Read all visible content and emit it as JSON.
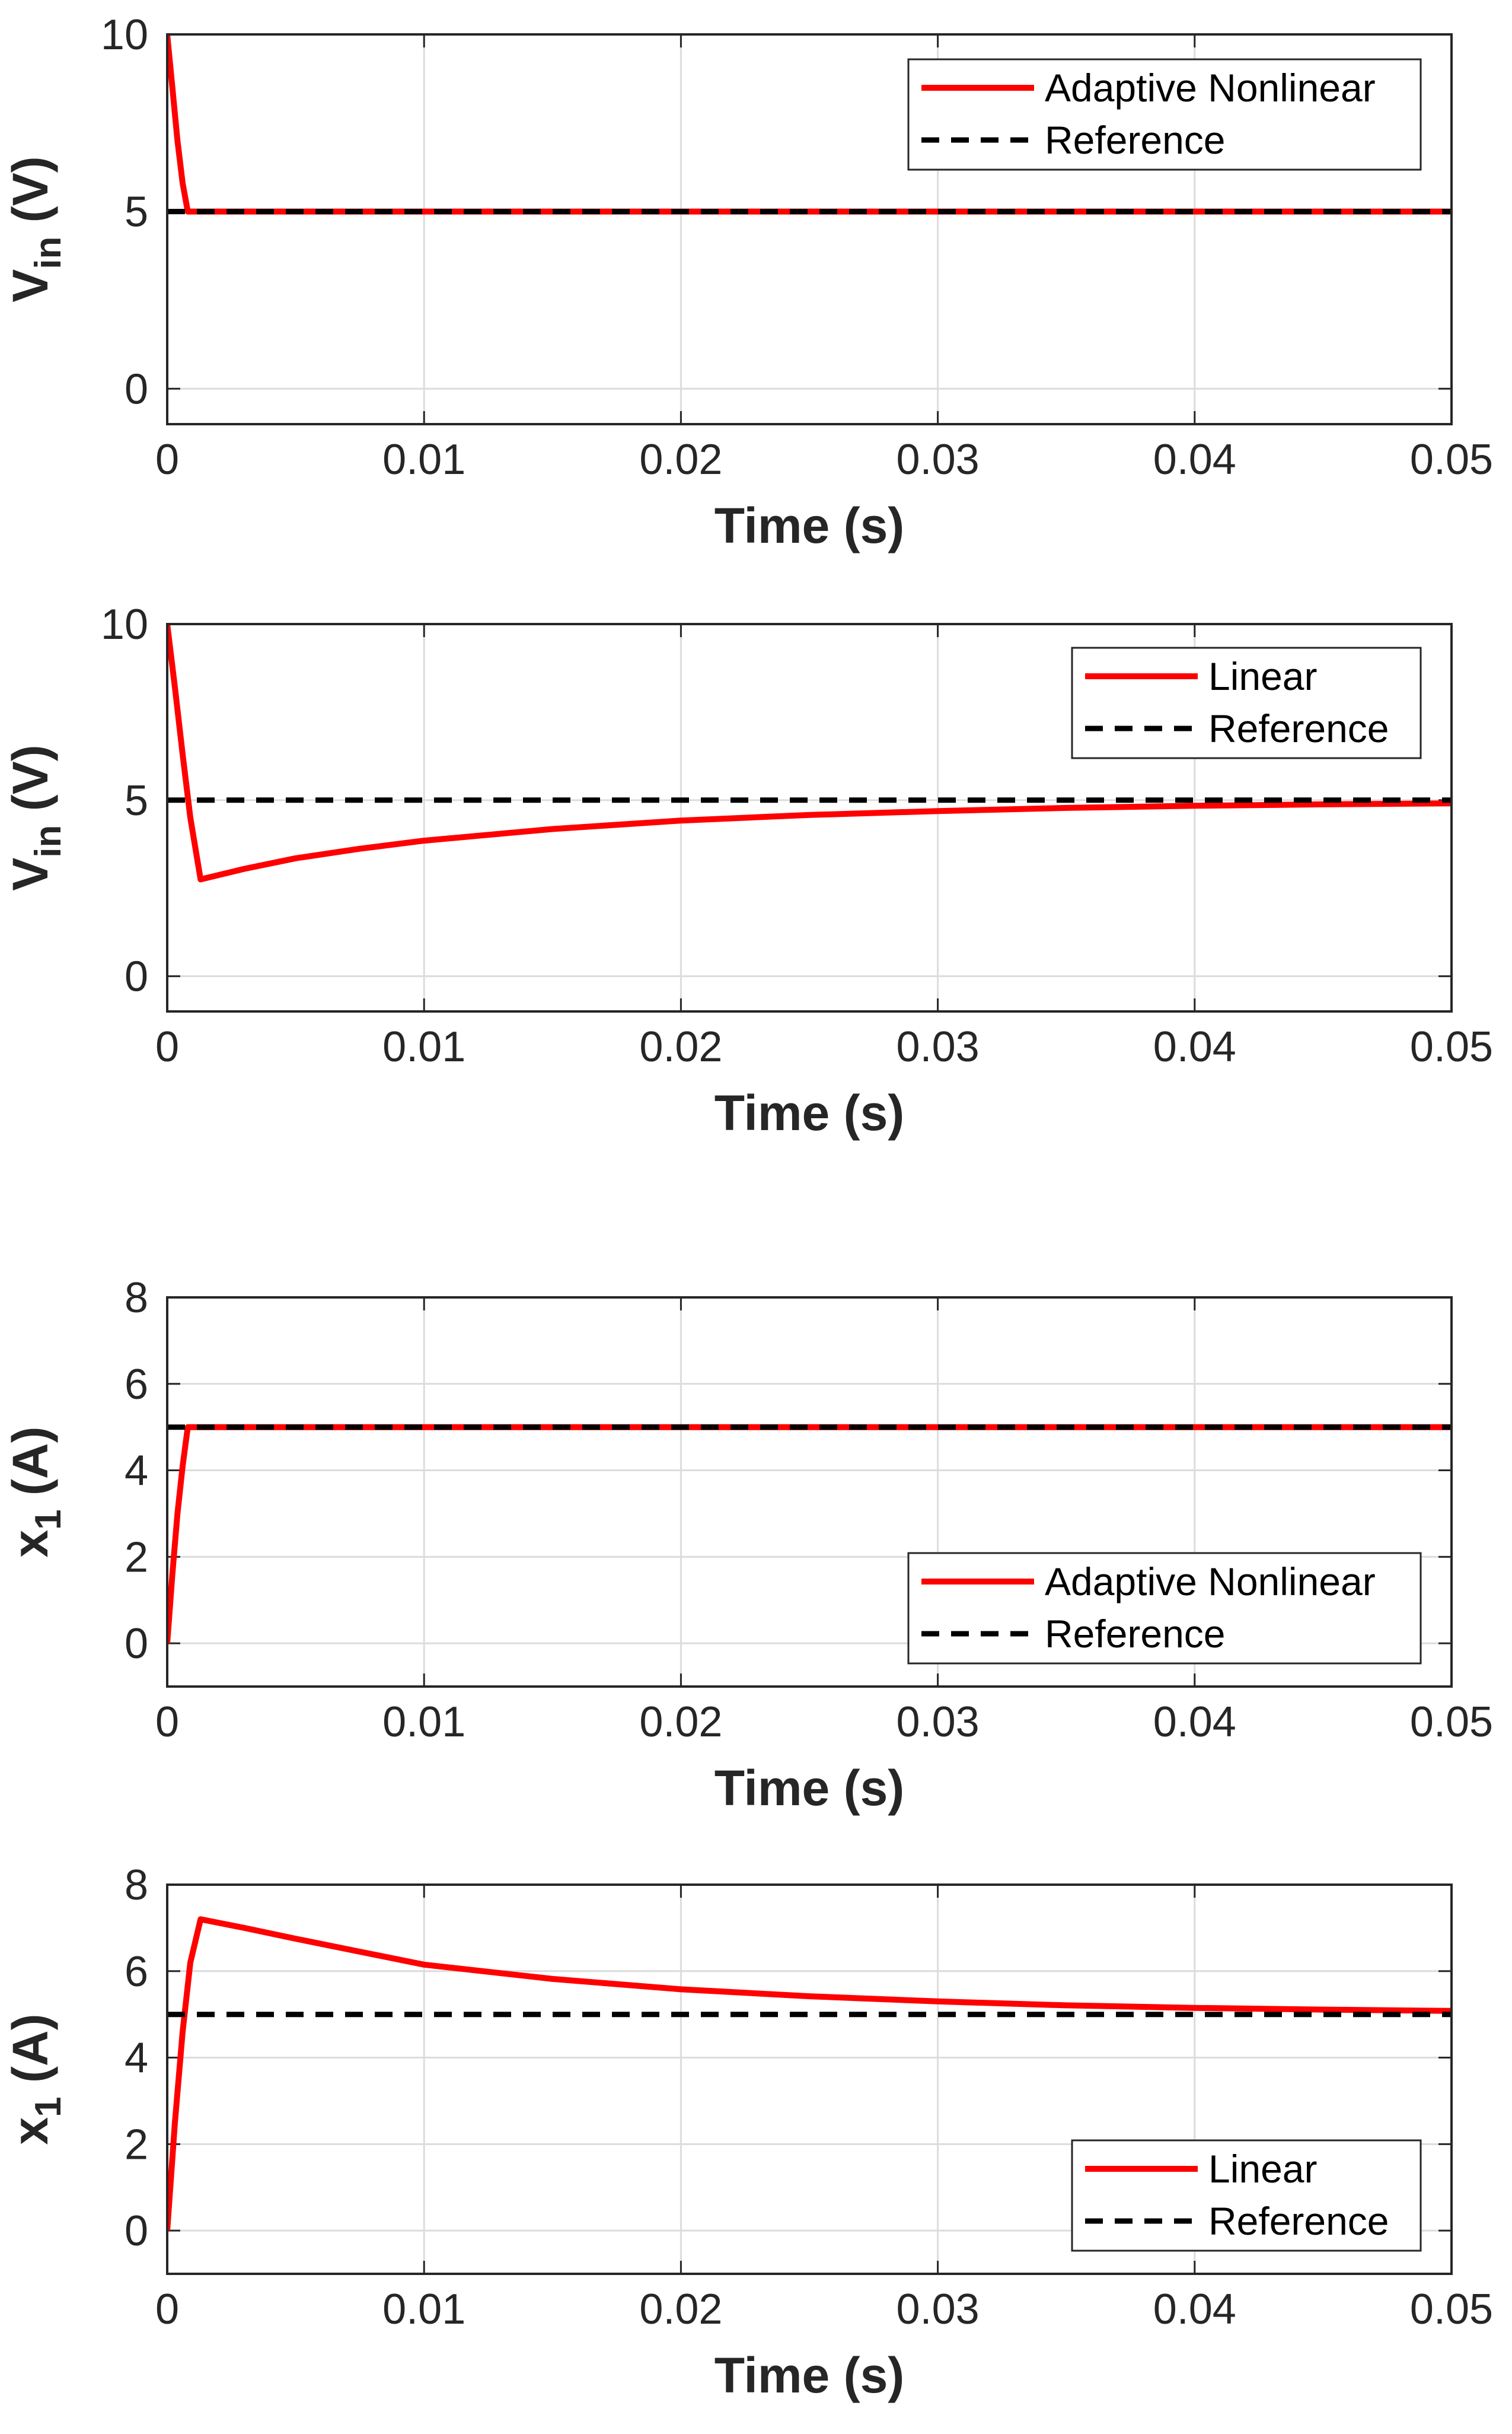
{
  "colors": {
    "series_line": "#ff0000",
    "reference_line": "#000000",
    "grid": "#dcdcdc",
    "axis": "#262626"
  },
  "chart_data": [
    {
      "type": "line",
      "xlabel": "Time (s)",
      "ylabel": "V",
      "ylabel_sub": "in",
      "ylabel_unit": " (V)",
      "xlim": [
        0,
        0.05
      ],
      "ylim": [
        -1,
        10
      ],
      "xticks": [
        0,
        0.01,
        0.02,
        0.03,
        0.04,
        0.05
      ],
      "xtick_labels": [
        "0",
        "0.01",
        "0.02",
        "0.03",
        "0.04",
        "0.05"
      ],
      "yticks": [
        0,
        5,
        10
      ],
      "ytick_labels": [
        "0",
        "5",
        "10"
      ],
      "grid": true,
      "legend_position": "top-right",
      "series": [
        {
          "name": "Adaptive Nonlinear",
          "style": "solid",
          "x": [
            0,
            0.0002,
            0.0004,
            0.0006,
            0.0008,
            0.001,
            0.01,
            0.02,
            0.03,
            0.04,
            0.05
          ],
          "y": [
            10,
            8.5,
            7.0,
            5.8,
            5.0,
            5.0,
            5.0,
            5.0,
            5.0,
            5.0,
            5.0
          ]
        },
        {
          "name": "Reference",
          "style": "dashed",
          "x": [
            0,
            0.05
          ],
          "y": [
            5,
            5
          ]
        }
      ]
    },
    {
      "type": "line",
      "xlabel": "Time (s)",
      "ylabel": "V",
      "ylabel_sub": "in",
      "ylabel_unit": " (V)",
      "xlim": [
        0,
        0.05
      ],
      "ylim": [
        -1,
        10
      ],
      "xticks": [
        0,
        0.01,
        0.02,
        0.03,
        0.04,
        0.05
      ],
      "xtick_labels": [
        "0",
        "0.01",
        "0.02",
        "0.03",
        "0.04",
        "0.05"
      ],
      "yticks": [
        0,
        5,
        10
      ],
      "ytick_labels": [
        "0",
        "5",
        "10"
      ],
      "grid": true,
      "legend_position": "top-right",
      "series": [
        {
          "name": "Linear",
          "style": "solid",
          "x": [
            0,
            0.0003,
            0.0006,
            0.0009,
            0.0013,
            0.003,
            0.005,
            0.0075,
            0.01,
            0.015,
            0.02,
            0.025,
            0.03,
            0.035,
            0.04,
            0.045,
            0.05
          ],
          "y": [
            10,
            8.2,
            6.3,
            4.5,
            2.75,
            3.05,
            3.35,
            3.62,
            3.85,
            4.18,
            4.42,
            4.58,
            4.69,
            4.78,
            4.84,
            4.88,
            4.91
          ]
        },
        {
          "name": "Reference",
          "style": "dashed",
          "x": [
            0,
            0.05
          ],
          "y": [
            5,
            5
          ]
        }
      ]
    },
    {
      "type": "line",
      "xlabel": "Time (s)",
      "ylabel": "x",
      "ylabel_sub": "1",
      "ylabel_unit": " (A)",
      "xlim": [
        0,
        0.05
      ],
      "ylim": [
        -1,
        8
      ],
      "xticks": [
        0,
        0.01,
        0.02,
        0.03,
        0.04,
        0.05
      ],
      "xtick_labels": [
        "0",
        "0.01",
        "0.02",
        "0.03",
        "0.04",
        "0.05"
      ],
      "yticks": [
        0,
        2,
        4,
        6,
        8
      ],
      "ytick_labels": [
        "0",
        "2",
        "4",
        "6",
        "8"
      ],
      "grid": true,
      "legend_position": "bottom-right",
      "series": [
        {
          "name": "Adaptive Nonlinear",
          "style": "solid",
          "x": [
            0,
            0.0002,
            0.0004,
            0.0006,
            0.0008,
            0.001,
            0.01,
            0.02,
            0.03,
            0.04,
            0.05
          ],
          "y": [
            0,
            1.6,
            3.0,
            4.1,
            5.0,
            5.0,
            5.0,
            5.0,
            5.0,
            5.0,
            5.0
          ]
        },
        {
          "name": "Reference",
          "style": "dashed",
          "x": [
            0,
            0.05
          ],
          "y": [
            5,
            5
          ]
        }
      ]
    },
    {
      "type": "line",
      "xlabel": "Time (s)",
      "ylabel": "x",
      "ylabel_sub": "1",
      "ylabel_unit": " (A)",
      "xlim": [
        0,
        0.05
      ],
      "ylim": [
        -1,
        8
      ],
      "xticks": [
        0,
        0.01,
        0.02,
        0.03,
        0.04,
        0.05
      ],
      "xtick_labels": [
        "0",
        "0.01",
        "0.02",
        "0.03",
        "0.04",
        "0.05"
      ],
      "yticks": [
        0,
        2,
        4,
        6,
        8
      ],
      "ytick_labels": [
        "0",
        "2",
        "4",
        "6",
        "8"
      ],
      "grid": true,
      "legend_position": "bottom-right",
      "series": [
        {
          "name": "Linear",
          "style": "solid",
          "x": [
            0,
            0.0003,
            0.0006,
            0.0009,
            0.0013,
            0.003,
            0.005,
            0.0075,
            0.01,
            0.015,
            0.02,
            0.025,
            0.03,
            0.035,
            0.04,
            0.045,
            0.05
          ],
          "y": [
            0,
            2.5,
            4.6,
            6.2,
            7.2,
            7.0,
            6.75,
            6.45,
            6.15,
            5.82,
            5.58,
            5.42,
            5.3,
            5.21,
            5.15,
            5.11,
            5.08
          ]
        },
        {
          "name": "Reference",
          "style": "dashed",
          "x": [
            0,
            0.05
          ],
          "y": [
            5,
            5
          ]
        }
      ]
    }
  ]
}
